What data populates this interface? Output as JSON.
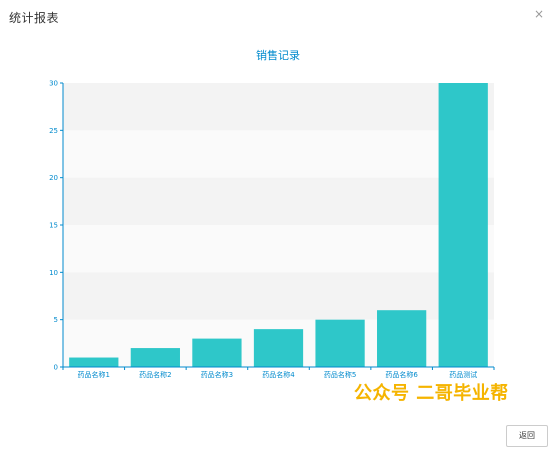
{
  "dialog": {
    "title": "统计报表",
    "close_icon": "×",
    "back_button": "返回",
    "watermark": "公众号 二哥毕业帮"
  },
  "colors": {
    "bar": "#2ec7c9",
    "axis": "#008acd",
    "title": "#008acd",
    "band_light": "#fafafa",
    "band_dark": "#f3f3f3"
  },
  "chart_data": {
    "type": "bar",
    "title": "销售记录",
    "categories": [
      "药品名称1",
      "药品名称2",
      "药品名称3",
      "药品名称4",
      "药品名称5",
      "药品名称6",
      "药品测试"
    ],
    "values": [
      1,
      2,
      3,
      4,
      5,
      6,
      30
    ],
    "ylim": [
      0,
      30
    ],
    "yticks": [
      0,
      5,
      10,
      15,
      20,
      25,
      30
    ],
    "grid": true,
    "xlabel": "",
    "ylabel": ""
  }
}
